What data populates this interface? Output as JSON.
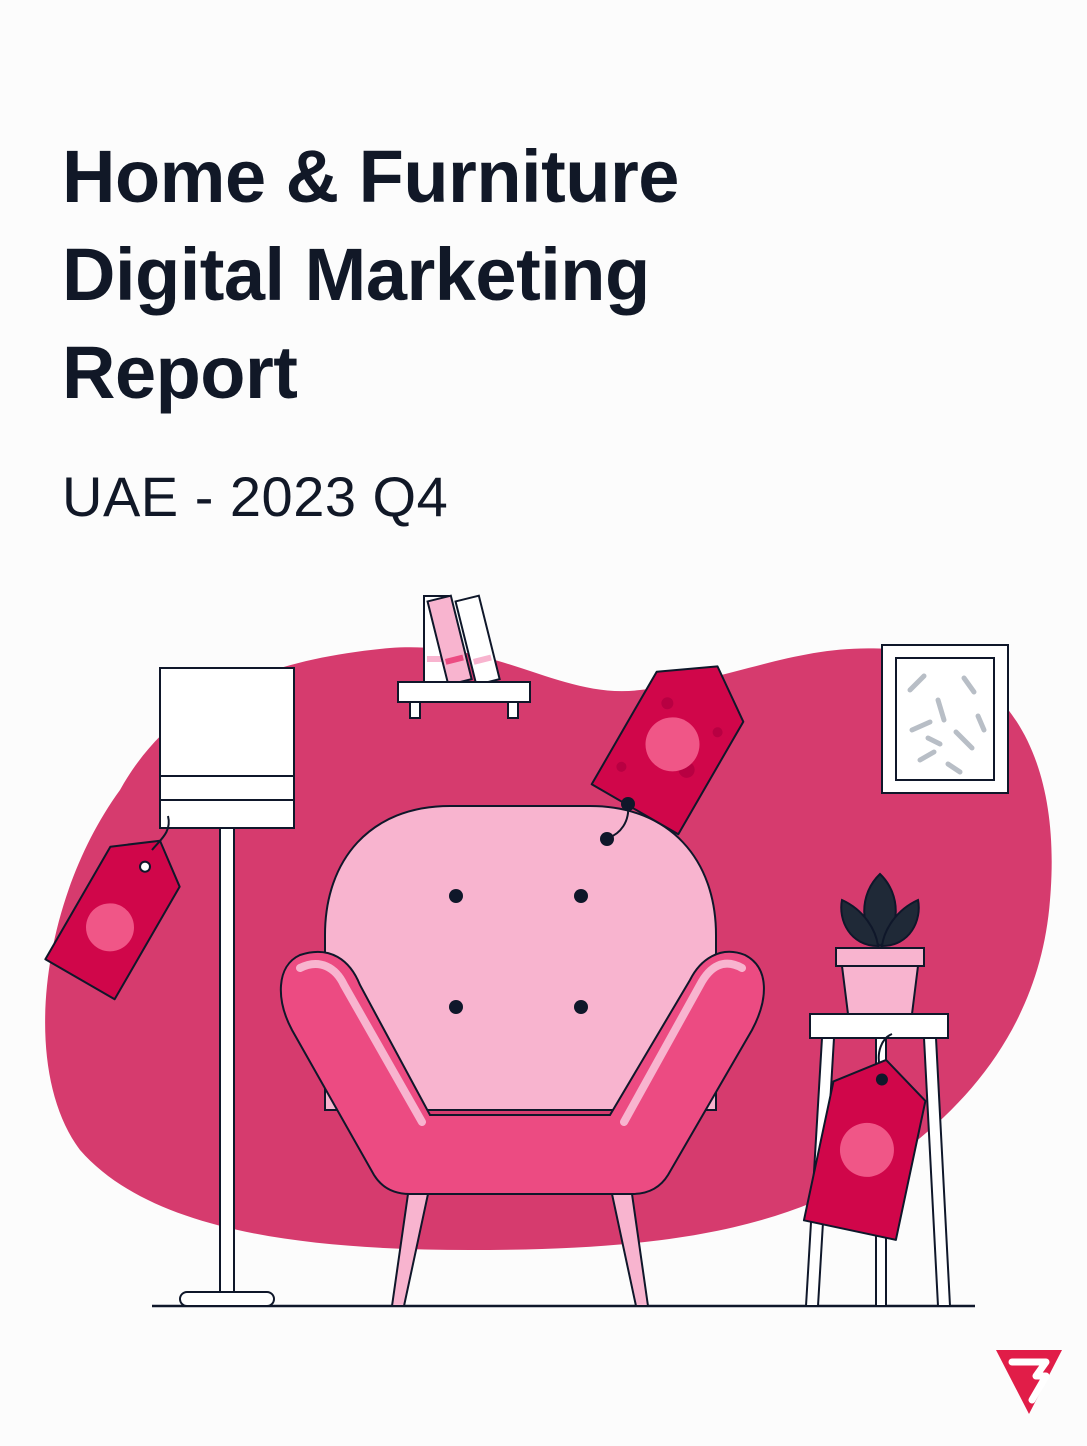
{
  "cover": {
    "title_lines": [
      "Home & Furniture",
      "Digital Marketing",
      "Report"
    ],
    "subtitle": "UAE - 2023 Q4"
  },
  "illustration": {
    "subject": "living-room-armchair-scene",
    "colors": {
      "blob": "#d63b6e",
      "chair_back": "#f8b4cf",
      "chair_body": "#ec4b82",
      "price_tag": "#d0064a",
      "tag_spot": "#f05687",
      "outline": "#0f172a",
      "white": "#ffffff"
    }
  },
  "brand": {
    "logo_icon": "brand-logo-icon",
    "color": "#e11d48"
  }
}
